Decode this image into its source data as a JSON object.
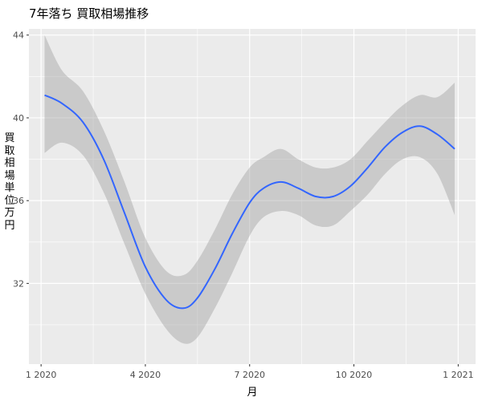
{
  "chart_data": {
    "type": "line",
    "title": "7年落ち 買取相場推移",
    "xlabel": "月",
    "ylabel": "買取相場 単位 万円",
    "x_tick_labels": [
      "1 2020",
      "4 2020",
      "7 2020",
      "10 2020",
      "1 2021"
    ],
    "x_tick_values": [
      0,
      3,
      6,
      9,
      12
    ],
    "x_range": [
      -0.35,
      12.5
    ],
    "y_tick_labels": [
      "32",
      "36",
      "40",
      "44"
    ],
    "y_tick_values": [
      32,
      36,
      40,
      44
    ],
    "ylim": [
      28.1,
      44.3
    ],
    "grid": true,
    "series": [
      {
        "color": "#3366FF",
        "x": [
          0.1,
          0.6,
          1.2,
          1.8,
          2.4,
          3.0,
          3.6,
          4.1,
          4.5,
          5.0,
          5.5,
          6.0,
          6.4,
          6.9,
          7.4,
          7.9,
          8.4,
          8.9,
          9.4,
          9.9,
          10.4,
          10.9,
          11.4,
          11.9
        ],
        "y": [
          41.1,
          40.7,
          39.8,
          38.0,
          35.4,
          32.8,
          31.2,
          30.8,
          31.3,
          32.7,
          34.4,
          35.9,
          36.6,
          36.9,
          36.6,
          36.2,
          36.2,
          36.7,
          37.6,
          38.6,
          39.3,
          39.6,
          39.2,
          38.5
        ],
        "lower": [
          38.3,
          38.8,
          38.2,
          36.4,
          33.9,
          31.5,
          29.8,
          29.1,
          29.4,
          30.8,
          32.5,
          34.3,
          35.2,
          35.5,
          35.3,
          34.8,
          34.8,
          35.5,
          36.3,
          37.3,
          38.0,
          38.1,
          37.3,
          35.3
        ],
        "upper": [
          44.0,
          42.3,
          41.3,
          39.4,
          36.9,
          34.2,
          32.6,
          32.4,
          33.1,
          34.6,
          36.3,
          37.6,
          38.1,
          38.5,
          38.0,
          37.6,
          37.6,
          38.0,
          38.9,
          39.8,
          40.6,
          41.1,
          41.0,
          41.7
        ]
      }
    ]
  }
}
